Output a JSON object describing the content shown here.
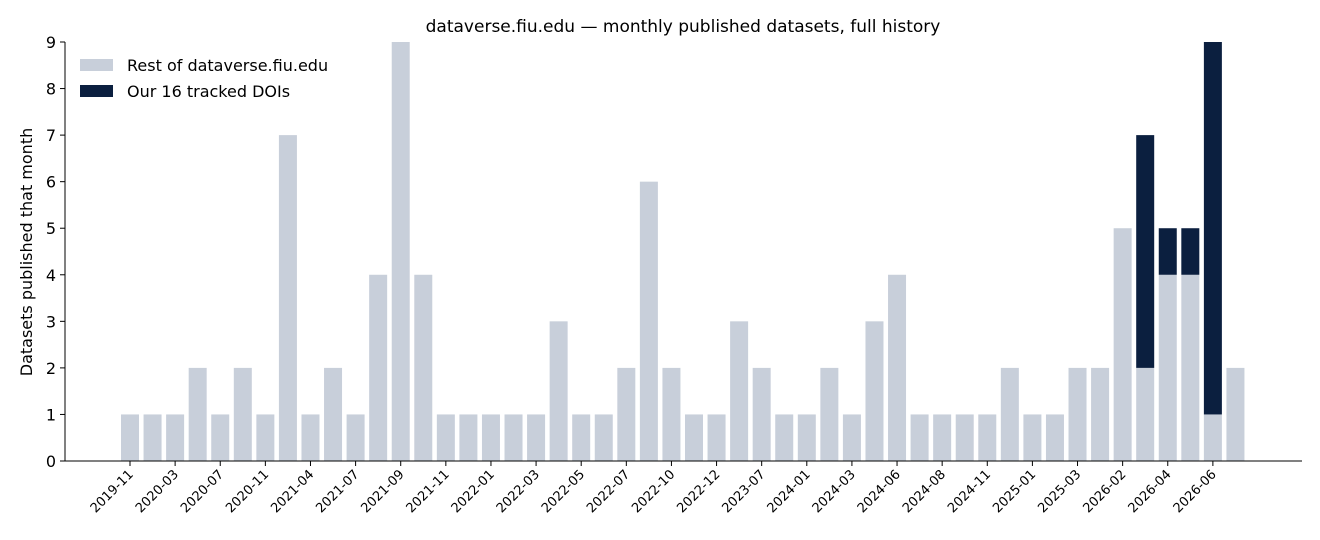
{
  "chart_data": {
    "type": "stacked_bar",
    "title": "dataverse.fiu.edu — monthly published datasets, full history",
    "y_label": "Datasets published that month",
    "categories": [
      "2019-11",
      null,
      "2020-03",
      null,
      "2020-07",
      null,
      "2020-11",
      null,
      "2021-04",
      null,
      "2021-07",
      null,
      "2021-09",
      null,
      "2021-11",
      null,
      "2022-01",
      null,
      "2022-03",
      null,
      "2022-05",
      null,
      "2022-07",
      null,
      "2022-10",
      null,
      "2022-12",
      null,
      "2023-07",
      null,
      "2024-01",
      null,
      "2024-03",
      null,
      "2024-06",
      null,
      "2024-08",
      null,
      "2024-11",
      null,
      "2025-01",
      null,
      "2025-03",
      null,
      "2026-02",
      null,
      "2026-04",
      null,
      "2026-06",
      null
    ],
    "series": [
      {
        "name": "Rest of dataverse.fiu.edu",
        "color": "#c8cfda",
        "values": [
          1,
          1,
          1,
          2,
          1,
          2,
          1,
          7,
          1,
          2,
          1,
          4,
          9,
          4,
          1,
          1,
          1,
          1,
          1,
          3,
          1,
          1,
          2,
          6,
          2,
          1,
          1,
          3,
          2,
          1,
          1,
          2,
          1,
          3,
          4,
          1,
          1,
          1,
          1,
          2,
          1,
          1,
          2,
          2,
          5,
          2,
          4,
          4,
          1,
          2
        ]
      },
      {
        "name": "Our 16 tracked DOIs",
        "color": "#0b1f3f",
        "values": [
          0,
          0,
          0,
          0,
          0,
          0,
          0,
          0,
          0,
          0,
          0,
          0,
          0,
          0,
          0,
          0,
          0,
          0,
          0,
          0,
          0,
          0,
          0,
          0,
          0,
          0,
          0,
          0,
          0,
          0,
          0,
          0,
          0,
          0,
          0,
          0,
          0,
          0,
          0,
          0,
          0,
          0,
          0,
          0,
          0,
          5,
          1,
          1,
          8,
          0
        ]
      }
    ],
    "ylim": [
      0,
      9
    ],
    "yticks": [
      0,
      1,
      2,
      3,
      4,
      5,
      6,
      7,
      8,
      9
    ],
    "grid": false,
    "legend": "upper left"
  }
}
